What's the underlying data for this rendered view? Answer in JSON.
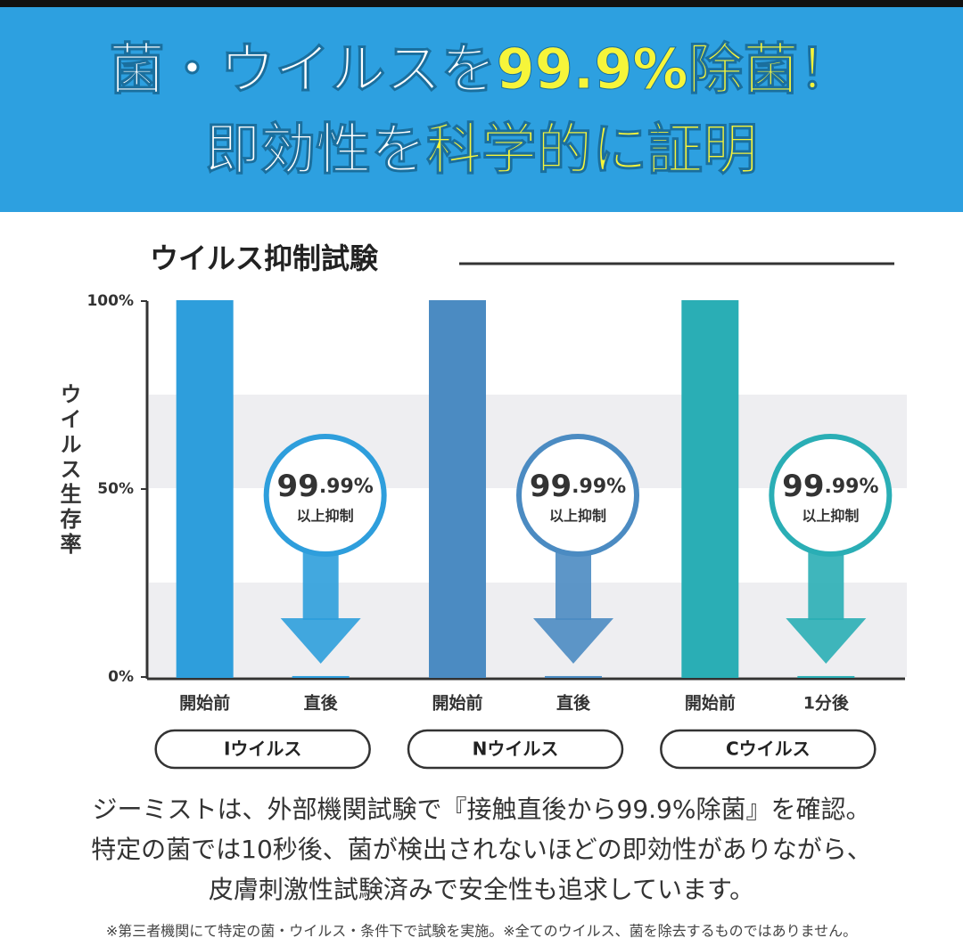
{
  "header": {
    "line1": [
      "菌・ウイルスを",
      "99.9%除菌！"
    ],
    "line2": [
      "即効性を",
      "科学的に証明"
    ]
  },
  "chart_data": {
    "type": "bar",
    "title": "ウイルス抑制試験",
    "y_label": "ウイルス生存率",
    "categories": [
      "開始前",
      "直後",
      "開始前",
      "直後",
      "開始前",
      "1分後"
    ],
    "values": [
      100,
      0.01,
      100,
      0.01,
      100,
      0.01
    ],
    "colors": [
      "#2e9edc",
      "#2e9edc",
      "#4b8bc2",
      "#4b8bc2",
      "#2aaeb5",
      "#2aaeb5"
    ],
    "groups": [
      "Iウイルス",
      "Nウイルス",
      "Cウイルス"
    ],
    "callouts": [
      {
        "big": "99",
        "small": ".99%",
        "note": "以上抑制"
      },
      {
        "big": "99",
        "small": ".99%",
        "note": "以上抑制"
      },
      {
        "big": "99",
        "small": ".99%",
        "note": "以上抑制"
      }
    ],
    "ylim": [
      0,
      100
    ],
    "yticks": [
      {
        "value": 0,
        "label": "0%"
      },
      {
        "value": 50,
        "label": "50%"
      },
      {
        "value": 100,
        "label": "100%"
      }
    ]
  },
  "body": [
    "ジーミストは、外部機関試験で『接触直後から99.9%除菌』を確認。",
    "特定の菌では10秒後、菌が検出されないほどの即効性がありながら、",
    "皮膚刺激性試験済みで安全性も追求しています。"
  ],
  "footnote": "※第三者機関にて特定の菌・ウイルス・条件下で試験を実施。※全てのウイルス、菌を除去するものではありません。"
}
